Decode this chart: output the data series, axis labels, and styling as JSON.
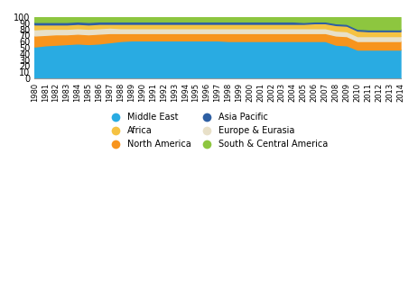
{
  "years": [
    1980,
    1981,
    1982,
    1983,
    1984,
    1985,
    1986,
    1987,
    1988,
    1989,
    1990,
    1991,
    1992,
    1993,
    1994,
    1995,
    1996,
    1997,
    1998,
    1999,
    2000,
    2001,
    2002,
    2003,
    2004,
    2005,
    2006,
    2007,
    2008,
    2009,
    2010,
    2011,
    2012,
    2013,
    2014
  ],
  "middle_east": [
    52,
    54,
    55,
    56,
    57,
    56,
    57,
    59,
    61,
    62,
    62,
    62,
    62,
    62,
    62,
    62,
    62,
    62,
    61,
    61,
    61,
    61,
    61,
    61,
    61,
    61,
    61,
    61,
    55,
    54,
    47,
    47,
    47,
    47,
    47
  ],
  "north_america": [
    18,
    17,
    17,
    16,
    16,
    16,
    16,
    15,
    13,
    12,
    12,
    12,
    12,
    12,
    12,
    12,
    12,
    12,
    13,
    13,
    13,
    13,
    13,
    13,
    13,
    13,
    13,
    13,
    15,
    15,
    14,
    14,
    14,
    14,
    14
  ],
  "europe_eurasia": [
    10,
    10,
    9,
    9,
    9,
    9,
    9,
    9,
    8,
    8,
    8,
    8,
    8,
    8,
    8,
    8,
    8,
    8,
    8,
    8,
    8,
    8,
    8,
    8,
    8,
    8,
    8,
    8,
    8,
    8,
    8,
    8,
    8,
    8,
    8
  ],
  "africa": [
    8,
    7,
    7,
    7,
    7,
    7,
    7,
    6,
    7,
    7,
    7,
    7,
    7,
    7,
    7,
    7,
    7,
    7,
    7,
    7,
    7,
    7,
    7,
    7,
    7,
    7,
    8,
    8,
    9,
    9,
    9,
    8,
    8,
    8,
    8
  ],
  "asia_pacific": [
    4,
    4,
    4,
    4,
    4,
    4,
    4,
    4,
    4,
    4,
    4,
    4,
    4,
    4,
    4,
    4,
    4,
    4,
    4,
    4,
    4,
    4,
    4,
    4,
    4,
    3,
    3,
    3,
    3,
    3,
    3,
    3,
    3,
    3,
    3
  ],
  "south_central_america": [
    8,
    8,
    8,
    8,
    7,
    8,
    7,
    7,
    7,
    7,
    7,
    7,
    7,
    7,
    7,
    7,
    7,
    7,
    7,
    7,
    7,
    7,
    7,
    7,
    7,
    9,
    9,
    9,
    10,
    11,
    19,
    20,
    20,
    20,
    20
  ],
  "colors": {
    "middle_east": "#29abe2",
    "north_america": "#f7941d",
    "europe_eurasia": "#e8e0c8",
    "africa": "#f5c242",
    "asia_pacific": "#2e5fa3",
    "south_central_america": "#8dc63f"
  },
  "legend_labels": [
    "Middle East",
    "Africa",
    "North America",
    "Asia Pacific",
    "Europe & Eurasia",
    "South & Central America"
  ],
  "legend_keys": [
    "middle_east",
    "africa",
    "north_america",
    "asia_pacific",
    "europe_eurasia",
    "south_central_america"
  ],
  "ylim": [
    0,
    100
  ],
  "xlim": [
    1980,
    2014
  ],
  "ylabel_ticks": [
    0,
    10,
    20,
    30,
    40,
    50,
    60,
    70,
    80,
    90,
    100
  ],
  "background_color": "#ffffff"
}
